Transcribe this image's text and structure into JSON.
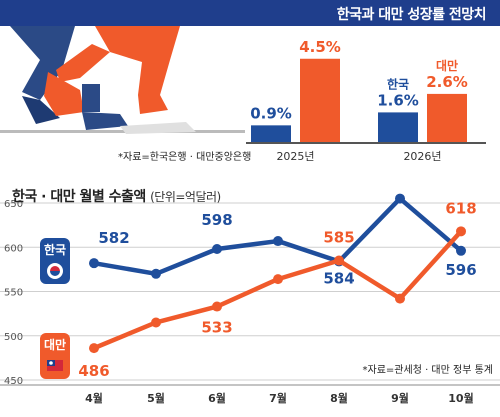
{
  "header": {
    "title": "한국과 대만 성장률 전망치"
  },
  "growth": {
    "source": "*자료=한국은행 · 대만중앙은행",
    "korea_color": "#1f4e9c",
    "taiwan_color": "#f05a2b",
    "korea_name": "한국",
    "taiwan_name": "대만"
  },
  "exports": {
    "title": "한국 · 대만 월별 수출액",
    "unit": "(단위=억달러)",
    "source": "*자료=관세청 · 대만 정부 통계",
    "korea_badge": "한국",
    "taiwan_badge": "대만"
  },
  "chart_data": [
    {
      "type": "bar",
      "categories": [
        "2025년",
        "2026년"
      ],
      "series": [
        {
          "name": "한국",
          "values": [
            0.9,
            1.6
          ],
          "labels": [
            "0.9%",
            "1.6%"
          ]
        },
        {
          "name": "대만",
          "values": [
            4.5,
            2.6
          ],
          "labels": [
            "4.5%",
            "2.6%"
          ]
        }
      ],
      "ylim": [
        0,
        5
      ]
    },
    {
      "type": "line",
      "title": "한국 · 대만 월별 수출액",
      "ylabel": "(단위=억달러)",
      "categories": [
        "4월",
        "5월",
        "6월",
        "7월",
        "8월",
        "9월",
        "10월"
      ],
      "ylim": [
        450,
        650
      ],
      "yticks": [
        "450",
        "500",
        "550",
        "600",
        "650"
      ],
      "series": [
        {
          "name": "한국",
          "values": [
            582,
            570,
            598,
            607,
            584,
            655,
            596
          ],
          "labels": [
            "582",
            "",
            "598",
            "",
            "584",
            "",
            "596"
          ]
        },
        {
          "name": "대만",
          "values": [
            486,
            515,
            533,
            564,
            585,
            542,
            618
          ],
          "labels": [
            "486",
            "",
            "533",
            "",
            "585",
            "",
            "618"
          ]
        }
      ]
    }
  ]
}
